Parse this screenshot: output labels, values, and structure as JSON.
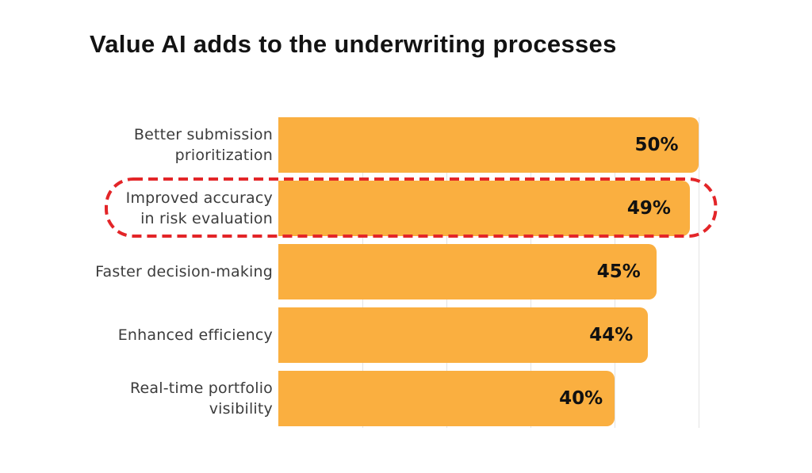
{
  "page": {
    "background_color": "#ffffff"
  },
  "chart_data": {
    "type": "bar",
    "orientation": "horizontal",
    "title": "Value AI adds to the underwriting processes",
    "title_color": "#131313",
    "categories": [
      "Better submission prioritization",
      "Improved accuracy in risk evaluation",
      "Faster decision-making",
      "Enhanced efficiency",
      "Real-time portfolio visibility"
    ],
    "category_lines": [
      [
        "Better submission",
        "prioritization"
      ],
      [
        "Improved accuracy",
        "in risk evaluation"
      ],
      [
        "Faster decision-making"
      ],
      [
        "Enhanced efficiency"
      ],
      [
        "Real-time portfolio",
        "visibility"
      ]
    ],
    "values": [
      50,
      49,
      45,
      44,
      40
    ],
    "value_labels": [
      "50%",
      "49%",
      "45%",
      "44%",
      "40%"
    ],
    "xlim": [
      0,
      50
    ],
    "gridline_values": [
      10,
      20,
      30,
      40,
      50
    ],
    "grid": "vertical-light",
    "legend": "none",
    "bar_color": "#faaf40",
    "label_color": "#3c3c3c",
    "value_color": "#111111",
    "gridline_color": "#e3e3e3",
    "highlight": {
      "bar_index": 1,
      "style": "dashed-rounded-outline",
      "color": "#e32528"
    }
  }
}
